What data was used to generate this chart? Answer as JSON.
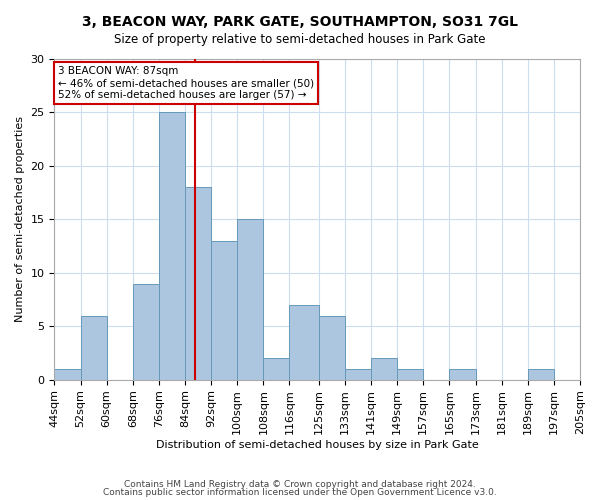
{
  "title": "3, BEACON WAY, PARK GATE, SOUTHAMPTON, SO31 7GL",
  "subtitle": "Size of property relative to semi-detached houses in Park Gate",
  "xlabel": "Distribution of semi-detached houses by size in Park Gate",
  "ylabel": "Number of semi-detached properties",
  "property_size": 87,
  "bin_edges": [
    44,
    52,
    60,
    68,
    76,
    84,
    92,
    100,
    108,
    116,
    125,
    133,
    141,
    149,
    157,
    165,
    173,
    181,
    189,
    197,
    205
  ],
  "bin_labels": [
    "44sqm",
    "52sqm",
    "60sqm",
    "68sqm",
    "76sqm",
    "84sqm",
    "92sqm",
    "100sqm",
    "108sqm",
    "116sqm",
    "125sqm",
    "133sqm",
    "141sqm",
    "149sqm",
    "157sqm",
    "165sqm",
    "173sqm",
    "181sqm",
    "189sqm",
    "197sqm",
    "205sqm"
  ],
  "counts": [
    1,
    6,
    0,
    9,
    25,
    18,
    13,
    15,
    2,
    7,
    6,
    1,
    2,
    1,
    0,
    1,
    0,
    0,
    1,
    0
  ],
  "bar_color": "#adc6e0",
  "bar_edge_color": "#6699bb",
  "annotation_box_color": "#cc0000",
  "vline_color": "#cc0000",
  "annotation_text_line1": "3 BEACON WAY: 87sqm",
  "annotation_text_line2": "← 46% of semi-detached houses are smaller (50)",
  "annotation_text_line3": "52% of semi-detached houses are larger (57) →",
  "ylim": [
    0,
    30
  ],
  "yticks": [
    0,
    5,
    10,
    15,
    20,
    25,
    30
  ],
  "footer_line1": "Contains HM Land Registry data © Crown copyright and database right 2024.",
  "footer_line2": "Contains public sector information licensed under the Open Government Licence v3.0.",
  "background_color": "#ffffff",
  "grid_color": "#ccddee"
}
